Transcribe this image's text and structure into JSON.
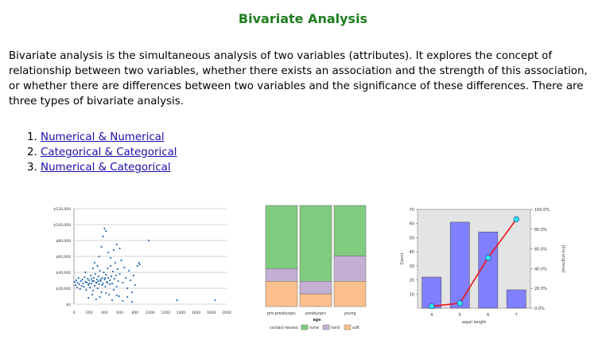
{
  "page": {
    "title": "Bivariate Analysis",
    "intro": "Bivariate analysis is the simultaneous analysis of two variables (attributes). It explores the concept of relationship between two variables, whether there exists an association and the strength of this association, or whether there are differences between two variables and the significance of these differences. There are three types of bivariate analysis.",
    "links": [
      {
        "number": "1.",
        "label": "Numerical & Numerical"
      },
      {
        "number": "2.",
        "label": "Categorical & Categorical"
      },
      {
        "number": "3.",
        "label": "Numerical & Categorical"
      }
    ]
  },
  "chart_data": [
    {
      "type": "scatter",
      "title": "",
      "xlabel": "",
      "ylabel": "",
      "xlim": [
        0,
        2000
      ],
      "ylim": [
        0,
        120000
      ],
      "x_ticks": [
        "0",
        "200",
        "400",
        "600",
        "800",
        "1000",
        "1200",
        "1400",
        "1600",
        "1800",
        "2000"
      ],
      "y_ticks": [
        "$0",
        "$20,000",
        "$40,000",
        "$60,000",
        "$80,000",
        "$100,000",
        "$120,000"
      ],
      "color": "#2f6eb5",
      "points": [
        [
          10,
          28000
        ],
        [
          20,
          24000
        ],
        [
          30,
          30000
        ],
        [
          40,
          21000
        ],
        [
          50,
          27000
        ],
        [
          60,
          33000
        ],
        [
          70,
          25000
        ],
        [
          80,
          19000
        ],
        [
          90,
          29000
        ],
        [
          100,
          23000
        ],
        [
          110,
          31000
        ],
        [
          120,
          26000
        ],
        [
          130,
          22000
        ],
        [
          140,
          34000
        ],
        [
          150,
          28000
        ],
        [
          160,
          18000
        ],
        [
          170,
          27000
        ],
        [
          180,
          32000
        ],
        [
          190,
          24000
        ],
        [
          200,
          30000
        ],
        [
          210,
          21000
        ],
        [
          220,
          36000
        ],
        [
          230,
          26000
        ],
        [
          240,
          29000
        ],
        [
          250,
          17000
        ],
        [
          260,
          33000
        ],
        [
          270,
          23000
        ],
        [
          280,
          38000
        ],
        [
          290,
          27000
        ],
        [
          300,
          31000
        ],
        [
          310,
          20000
        ],
        [
          320,
          35000
        ],
        [
          330,
          25000
        ],
        [
          340,
          42000
        ],
        [
          350,
          29000
        ],
        [
          360,
          15000
        ],
        [
          370,
          33000
        ],
        [
          380,
          26000
        ],
        [
          390,
          40000
        ],
        [
          400,
          31000
        ],
        [
          410,
          22000
        ],
        [
          420,
          37000
        ],
        [
          430,
          28000
        ],
        [
          440,
          45000
        ],
        [
          450,
          33000
        ],
        [
          460,
          12000
        ],
        [
          470,
          30000
        ],
        [
          480,
          48000
        ],
        [
          490,
          35000
        ],
        [
          500,
          26000
        ],
        [
          510,
          41000
        ],
        [
          520,
          18000
        ],
        [
          530,
          32000
        ],
        [
          540,
          52000
        ],
        [
          550,
          36000
        ],
        [
          560,
          22000
        ],
        [
          570,
          44000
        ],
        [
          580,
          29000
        ],
        [
          590,
          10000
        ],
        [
          600,
          38000
        ],
        [
          620,
          55000
        ],
        [
          640,
          27000
        ],
        [
          660,
          46000
        ],
        [
          680,
          33000
        ],
        [
          700,
          20000
        ],
        [
          720,
          42000
        ],
        [
          740,
          30000
        ],
        [
          760,
          15000
        ],
        [
          780,
          36000
        ],
        [
          800,
          24000
        ],
        [
          330,
          60000
        ],
        [
          360,
          72000
        ],
        [
          380,
          85000
        ],
        [
          400,
          95000
        ],
        [
          420,
          92000
        ],
        [
          450,
          65000
        ],
        [
          480,
          58000
        ],
        [
          520,
          68000
        ],
        [
          560,
          75000
        ],
        [
          600,
          70000
        ],
        [
          190,
          8000
        ],
        [
          240,
          12000
        ],
        [
          290,
          6000
        ],
        [
          340,
          9000
        ],
        [
          420,
          14000
        ],
        [
          500,
          5000
        ],
        [
          560,
          11000
        ],
        [
          640,
          4000
        ],
        [
          700,
          9000
        ],
        [
          760,
          3000
        ],
        [
          830,
          48000
        ],
        [
          850,
          52000
        ],
        [
          860,
          50000
        ],
        [
          980,
          80000
        ],
        [
          1350,
          5000
        ],
        [
          1850,
          5000
        ],
        [
          150,
          40000
        ],
        [
          250,
          45000
        ],
        [
          270,
          52000
        ],
        [
          310,
          48000
        ],
        [
          200,
          26000
        ],
        [
          230,
          32000
        ],
        [
          260,
          29000
        ],
        [
          300,
          27000
        ],
        [
          320,
          29000
        ],
        [
          350,
          31000
        ],
        [
          370,
          24000
        ],
        [
          410,
          33000
        ],
        [
          440,
          27000
        ],
        [
          470,
          25000
        ]
      ]
    },
    {
      "type": "bar",
      "stacked": true,
      "percent": true,
      "xlabel": "age",
      "legend_title": "contact-lenses:",
      "categories": [
        "pre-presbyopic",
        "presbyopic",
        "young"
      ],
      "series": [
        {
          "name": "none",
          "color": "#7fcc7f",
          "values": [
            62.5,
            75.0,
            50.0
          ]
        },
        {
          "name": "hard",
          "color": "#c3afd4",
          "values": [
            12.5,
            12.5,
            25.0
          ]
        },
        {
          "name": "soft",
          "color": "#fbc08b",
          "values": [
            25.0,
            12.5,
            25.0
          ]
        }
      ],
      "legend_position": "bottom"
    },
    {
      "type": "bar",
      "xlabel": "sepal length",
      "ylabel": "Count",
      "y2label": "[Iris-virginica]",
      "categories": [
        "4",
        "5",
        "6",
        "7"
      ],
      "values": [
        22,
        61,
        54,
        13
      ],
      "ylim": [
        0,
        70
      ],
      "y_ticks": [
        "10",
        "20",
        "30",
        "40",
        "50",
        "60",
        "70"
      ],
      "y2_ticks": [
        "0.0%",
        "20.0%",
        "40.0%",
        "60.0%",
        "80.0%",
        "100.0%"
      ],
      "bar_color": "#8080ff",
      "line": {
        "color": "#ee1111",
        "marker_color": "#33e6f0",
        "values": [
          2,
          5,
          51,
          90
        ]
      },
      "y2lim": [
        0,
        100
      ]
    }
  ]
}
